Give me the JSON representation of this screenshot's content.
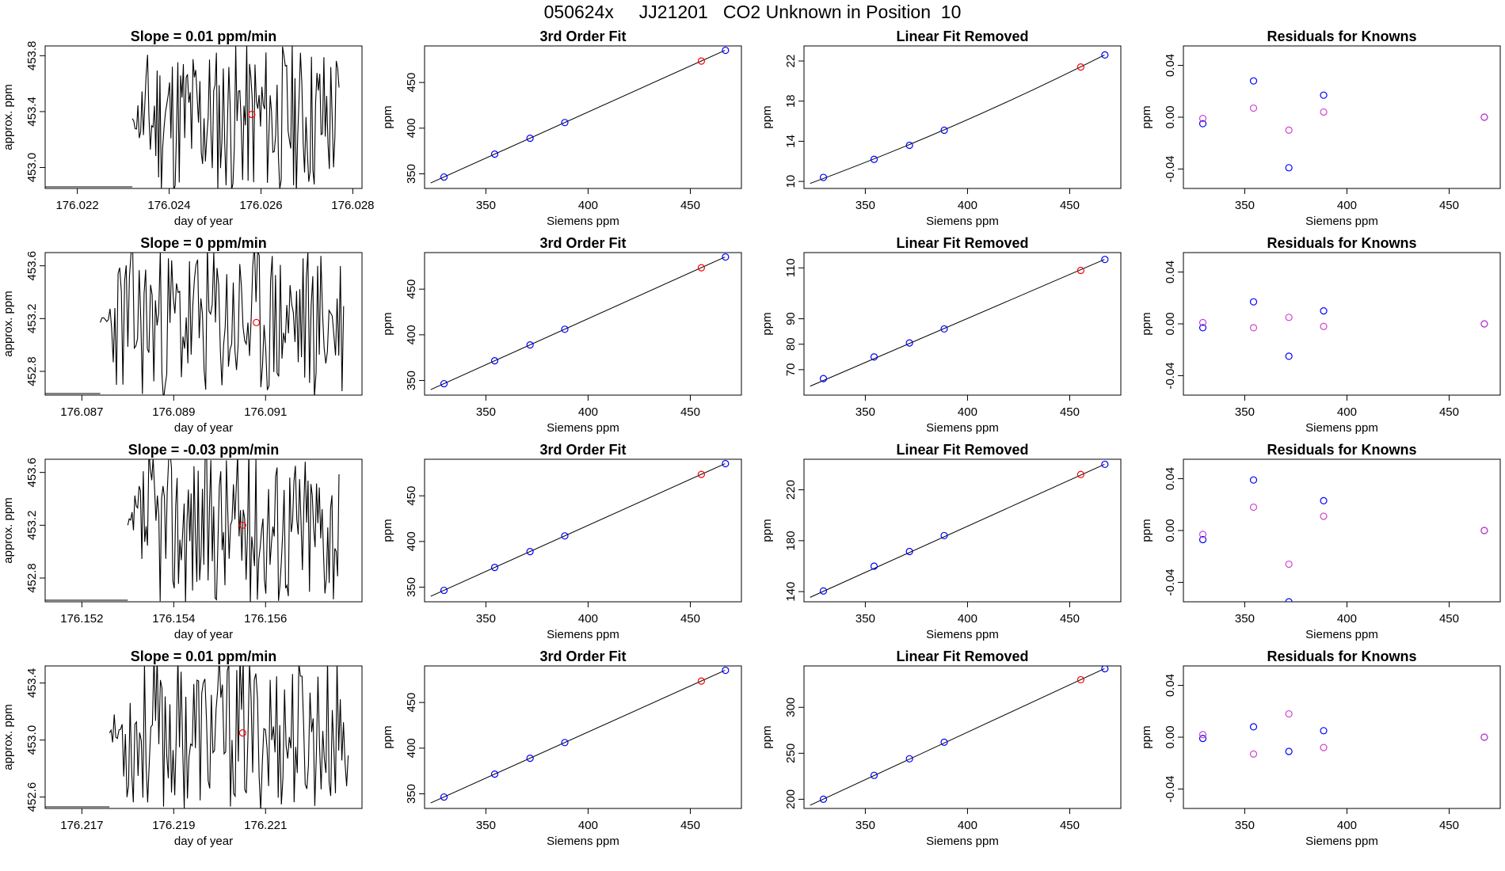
{
  "figure_title": "050624x     JJ21201   CO2 Unknown in Position  10",
  "colors": {
    "axis": "#000000",
    "line": "#000000",
    "known_point": "#0000ff",
    "unknown_point": "#ff0000",
    "residual_alt": "#cc44cc"
  },
  "chart_data": [
    {
      "type": "line",
      "title": "Slope =  0.01  ppm/min",
      "xlabel": "day of year",
      "ylabel": "approx. ppm",
      "xlim": [
        176.0213,
        176.0282
      ],
      "ylim": [
        452.85,
        453.87
      ],
      "xticks": [
        176.022,
        176.024,
        176.026,
        176.028
      ],
      "xtick_labels": [
        "176.022",
        "176.024",
        "176.026",
        "176.028"
      ],
      "yticks": [
        453.0,
        453.4,
        453.8
      ],
      "ytick_labels": [
        "453.0",
        "453.4",
        "453.8"
      ],
      "trace": {
        "start": 176.0232,
        "end": 176.0277,
        "amplitude": 0.55,
        "center": 453.35,
        "seed": 11
      },
      "marker": {
        "x": 176.0258,
        "y": 453.38
      }
    },
    {
      "type": "scatter",
      "title": "3rd Order Fit",
      "xlabel": "Siemens ppm",
      "ylabel": "ppm",
      "xlim": [
        320,
        475
      ],
      "ylim": [
        334,
        490
      ],
      "xticks": [
        350,
        400,
        450
      ],
      "xtick_labels": [
        "350",
        "400",
        "450"
      ],
      "yticks": [
        350,
        400,
        450
      ],
      "ytick_labels": [
        "350",
        "400",
        "450"
      ],
      "known": {
        "x": [
          329.5,
          354.3,
          371.6,
          388.6,
          467.2
        ],
        "y": [
          346.5,
          371.6,
          388.9,
          406.1,
          485.2
        ]
      },
      "unknown": {
        "x": [
          455.4
        ],
        "y": [
          473.4
        ]
      },
      "fit_x": [
        323,
        467
      ],
      "fit_y": [
        340,
        485.2
      ]
    },
    {
      "type": "scatter",
      "title": "Linear Fit Removed",
      "xlabel": "Siemens ppm",
      "ylabel": "ppm",
      "xlim": [
        320,
        475
      ],
      "ylim": [
        9.3,
        23.5
      ],
      "xticks": [
        350,
        400,
        450
      ],
      "xtick_labels": [
        "350",
        "400",
        "450"
      ],
      "yticks": [
        10,
        14,
        18,
        22
      ],
      "ytick_labels": [
        "10",
        "14",
        "18",
        "22"
      ],
      "known": {
        "x": [
          329.5,
          354.3,
          371.6,
          388.6,
          467.2
        ],
        "y": [
          10.4,
          12.2,
          13.6,
          15.1,
          22.6
        ]
      },
      "unknown": {
        "x": [
          455.4
        ],
        "y": [
          21.4
        ]
      },
      "fit_x": [
        323,
        467
      ],
      "fit_y": [
        9.8,
        22.6
      ],
      "fit_curve": 0.9
    },
    {
      "type": "scatter",
      "title": "Residuals for Knowns",
      "xlabel": "Siemens ppm",
      "ylabel": "ppm",
      "xlim": [
        320,
        475
      ],
      "ylim": [
        -0.055,
        0.055
      ],
      "xticks": [
        350,
        400,
        450
      ],
      "xtick_labels": [
        "350",
        "400",
        "450"
      ],
      "yticks": [
        -0.04,
        0.0,
        0.04
      ],
      "ytick_labels": [
        "-0.04",
        "0.00",
        "0.04"
      ],
      "series": [
        {
          "x": [
            329.5,
            354.3,
            371.6,
            388.6,
            467.2
          ],
          "y": [
            -0.005,
            0.028,
            -0.039,
            0.017,
            0.0
          ]
        },
        {
          "x": [
            329.5,
            354.3,
            371.6,
            388.6,
            467.2
          ],
          "y": [
            -0.001,
            0.007,
            -0.01,
            0.004,
            0.0
          ]
        }
      ]
    },
    {
      "type": "line",
      "title": "Slope =  0  ppm/min",
      "xlabel": "day of year",
      "ylabel": "approx. ppm",
      "xlim": [
        176.0862,
        176.0931
      ],
      "ylim": [
        452.62,
        453.7
      ],
      "xticks": [
        176.087,
        176.089,
        176.091
      ],
      "xtick_labels": [
        "176.087",
        "176.089",
        "176.091"
      ],
      "yticks": [
        452.8,
        453.2,
        453.6
      ],
      "ytick_labels": [
        "452.8",
        "453.2",
        "453.6"
      ],
      "trace": {
        "start": 176.0874,
        "end": 176.0927,
        "amplitude": 0.6,
        "center": 453.17,
        "seed": 23
      },
      "marker": {
        "x": 176.0908,
        "y": 453.17
      }
    },
    {
      "type": "scatter",
      "title": "3rd Order Fit",
      "xlabel": "Siemens ppm",
      "ylabel": "ppm",
      "xlim": [
        320,
        475
      ],
      "ylim": [
        334,
        490
      ],
      "xticks": [
        350,
        400,
        450
      ],
      "xtick_labels": [
        "350",
        "400",
        "450"
      ],
      "yticks": [
        350,
        400,
        450
      ],
      "ytick_labels": [
        "350",
        "400",
        "450"
      ],
      "known": {
        "x": [
          329.5,
          354.3,
          371.6,
          388.6,
          467.2
        ],
        "y": [
          346.5,
          371.6,
          388.9,
          406.1,
          485.2
        ]
      },
      "unknown": {
        "x": [
          455.4
        ],
        "y": [
          473.4
        ]
      },
      "fit_x": [
        323,
        467
      ],
      "fit_y": [
        340,
        485.2
      ]
    },
    {
      "type": "scatter",
      "title": "Linear Fit Removed",
      "xlabel": "Siemens ppm",
      "ylabel": "ppm",
      "xlim": [
        320,
        475
      ],
      "ylim": [
        60,
        116
      ],
      "xticks": [
        350,
        400,
        450
      ],
      "xtick_labels": [
        "350",
        "400",
        "450"
      ],
      "yticks": [
        70,
        80,
        90,
        110
      ],
      "ytick_labels": [
        "70",
        "80",
        "90",
        "110"
      ],
      "known": {
        "x": [
          329.5,
          354.3,
          371.6,
          388.6,
          467.2
        ],
        "y": [
          66.5,
          75.0,
          80.5,
          86.0,
          113.3
        ]
      },
      "unknown": {
        "x": [
          455.4
        ],
        "y": [
          109.0
        ]
      },
      "fit_x": [
        323,
        467
      ],
      "fit_y": [
        63.5,
        113.3
      ]
    },
    {
      "type": "scatter",
      "title": "Residuals for Knowns",
      "xlabel": "Siemens ppm",
      "ylabel": "ppm",
      "xlim": [
        320,
        475
      ],
      "ylim": [
        -0.055,
        0.055
      ],
      "xticks": [
        350,
        400,
        450
      ],
      "xtick_labels": [
        "350",
        "400",
        "450"
      ],
      "yticks": [
        -0.04,
        0.0,
        0.04
      ],
      "ytick_labels": [
        "-0.04",
        "0.00",
        "0.04"
      ],
      "series": [
        {
          "x": [
            329.5,
            354.3,
            371.6,
            388.6,
            467.2
          ],
          "y": [
            -0.003,
            0.017,
            -0.025,
            0.01,
            0.0
          ]
        },
        {
          "x": [
            329.5,
            354.3,
            371.6,
            388.6,
            467.2
          ],
          "y": [
            0.001,
            -0.003,
            0.005,
            -0.002,
            0.0
          ]
        }
      ]
    },
    {
      "type": "line",
      "title": "Slope =  -0.03  ppm/min",
      "xlabel": "day of year",
      "ylabel": "approx. ppm",
      "xlim": [
        176.1512,
        176.1581
      ],
      "ylim": [
        452.62,
        453.7
      ],
      "xticks": [
        176.152,
        176.154,
        176.156
      ],
      "xtick_labels": [
        "176.152",
        "176.154",
        "176.156"
      ],
      "yticks": [
        452.8,
        453.2,
        453.6
      ],
      "ytick_labels": [
        "452.8",
        "453.2",
        "453.6"
      ],
      "trace": {
        "start": 176.153,
        "end": 176.1576,
        "amplitude": 0.6,
        "center": 453.2,
        "seed": 37
      },
      "marker": {
        "x": 176.1555,
        "y": 453.2
      }
    },
    {
      "type": "scatter",
      "title": "3rd Order Fit",
      "xlabel": "Siemens ppm",
      "ylabel": "ppm",
      "xlim": [
        320,
        475
      ],
      "ylim": [
        334,
        490
      ],
      "xticks": [
        350,
        400,
        450
      ],
      "xtick_labels": [
        "350",
        "400",
        "450"
      ],
      "yticks": [
        350,
        400,
        450
      ],
      "ytick_labels": [
        "350",
        "400",
        "450"
      ],
      "known": {
        "x": [
          329.5,
          354.3,
          371.6,
          388.6,
          467.2
        ],
        "y": [
          346.5,
          371.6,
          388.9,
          406.1,
          485.2
        ]
      },
      "unknown": {
        "x": [
          455.4
        ],
        "y": [
          473.4
        ]
      },
      "fit_x": [
        323,
        467
      ],
      "fit_y": [
        340,
        485.2
      ]
    },
    {
      "type": "scatter",
      "title": "Linear Fit Removed",
      "xlabel": "Siemens ppm",
      "ylabel": "ppm",
      "xlim": [
        320,
        475
      ],
      "ylim": [
        132,
        244
      ],
      "xticks": [
        350,
        400,
        450
      ],
      "xtick_labels": [
        "350",
        "400",
        "450"
      ],
      "yticks": [
        140,
        180,
        220
      ],
      "ytick_labels": [
        "140",
        "180",
        "220"
      ],
      "known": {
        "x": [
          329.5,
          354.3,
          371.6,
          388.6,
          467.2
        ],
        "y": [
          140.5,
          160.0,
          171.5,
          184.0,
          240.0
        ]
      },
      "unknown": {
        "x": [
          455.4
        ],
        "y": [
          232.0
        ]
      },
      "fit_x": [
        323,
        467
      ],
      "fit_y": [
        135.5,
        240.0
      ]
    },
    {
      "type": "scatter",
      "title": "Residuals for Knowns",
      "xlabel": "Siemens ppm",
      "ylabel": "ppm",
      "xlim": [
        320,
        475
      ],
      "ylim": [
        -0.055,
        0.055
      ],
      "xticks": [
        350,
        400,
        450
      ],
      "xtick_labels": [
        "350",
        "400",
        "450"
      ],
      "yticks": [
        -0.04,
        0.0,
        0.04
      ],
      "ytick_labels": [
        "-0.04",
        "0.00",
        "0.04"
      ],
      "series": [
        {
          "x": [
            329.5,
            354.3,
            371.6,
            388.6,
            467.2
          ],
          "y": [
            -0.007,
            0.039,
            -0.055,
            0.023,
            0.0
          ]
        },
        {
          "x": [
            329.5,
            354.3,
            371.6,
            388.6,
            467.2
          ],
          "y": [
            -0.003,
            0.018,
            -0.026,
            0.011,
            0.0
          ]
        }
      ]
    },
    {
      "type": "line",
      "title": "Slope =  0.01  ppm/min",
      "xlabel": "day of year",
      "ylabel": "approx. ppm",
      "xlim": [
        176.2162,
        176.2231
      ],
      "ylim": [
        452.52,
        453.52
      ],
      "xticks": [
        176.217,
        176.219,
        176.221
      ],
      "xtick_labels": [
        "176.217",
        "176.219",
        "176.221"
      ],
      "yticks": [
        452.6,
        453.0,
        453.4
      ],
      "ytick_labels": [
        "452.6",
        "453.0",
        "453.4"
      ],
      "trace": {
        "start": 176.2176,
        "end": 176.2228,
        "amplitude": 0.55,
        "center": 453.05,
        "seed": 53
      },
      "marker": {
        "x": 176.2205,
        "y": 453.05
      }
    },
    {
      "type": "scatter",
      "title": "3rd Order Fit",
      "xlabel": "Siemens ppm",
      "ylabel": "ppm",
      "xlim": [
        320,
        475
      ],
      "ylim": [
        334,
        490
      ],
      "xticks": [
        350,
        400,
        450
      ],
      "xtick_labels": [
        "350",
        "400",
        "450"
      ],
      "yticks": [
        350,
        400,
        450
      ],
      "ytick_labels": [
        "350",
        "400",
        "450"
      ],
      "known": {
        "x": [
          329.5,
          354.3,
          371.6,
          388.6,
          467.2
        ],
        "y": [
          346.5,
          371.6,
          388.9,
          406.1,
          485.2
        ]
      },
      "unknown": {
        "x": [
          455.4
        ],
        "y": [
          473.4
        ]
      },
      "fit_x": [
        323,
        467
      ],
      "fit_y": [
        340,
        485.2
      ]
    },
    {
      "type": "scatter",
      "title": "Linear Fit Removed",
      "xlabel": "Siemens ppm",
      "ylabel": "ppm",
      "xlim": [
        320,
        475
      ],
      "ylim": [
        190,
        345
      ],
      "xticks": [
        350,
        400,
        450
      ],
      "xtick_labels": [
        "350",
        "400",
        "450"
      ],
      "yticks": [
        200,
        250,
        300
      ],
      "ytick_labels": [
        "200",
        "250",
        "300"
      ],
      "known": {
        "x": [
          329.5,
          354.3,
          371.6,
          388.6,
          467.2
        ],
        "y": [
          200.0,
          226.0,
          244.0,
          262.0,
          342.0
        ]
      },
      "unknown": {
        "x": [
          455.4
        ],
        "y": [
          330.0
        ]
      },
      "fit_x": [
        323,
        467
      ],
      "fit_y": [
        193.5,
        342.0
      ]
    },
    {
      "type": "scatter",
      "title": "Residuals for Knowns",
      "xlabel": "Siemens ppm",
      "ylabel": "ppm",
      "xlim": [
        320,
        475
      ],
      "ylim": [
        -0.055,
        0.055
      ],
      "xticks": [
        350,
        400,
        450
      ],
      "xtick_labels": [
        "350",
        "400",
        "450"
      ],
      "yticks": [
        -0.04,
        0.0,
        0.04
      ],
      "ytick_labels": [
        "-0.04",
        "0.00",
        "0.04"
      ],
      "series": [
        {
          "x": [
            329.5,
            354.3,
            371.6,
            388.6,
            467.2
          ],
          "y": [
            -0.001,
            0.008,
            -0.011,
            0.005,
            0.0
          ]
        },
        {
          "x": [
            329.5,
            354.3,
            371.6,
            388.6,
            467.2
          ],
          "y": [
            0.002,
            -0.013,
            0.018,
            -0.008,
            0.0
          ]
        }
      ]
    }
  ]
}
